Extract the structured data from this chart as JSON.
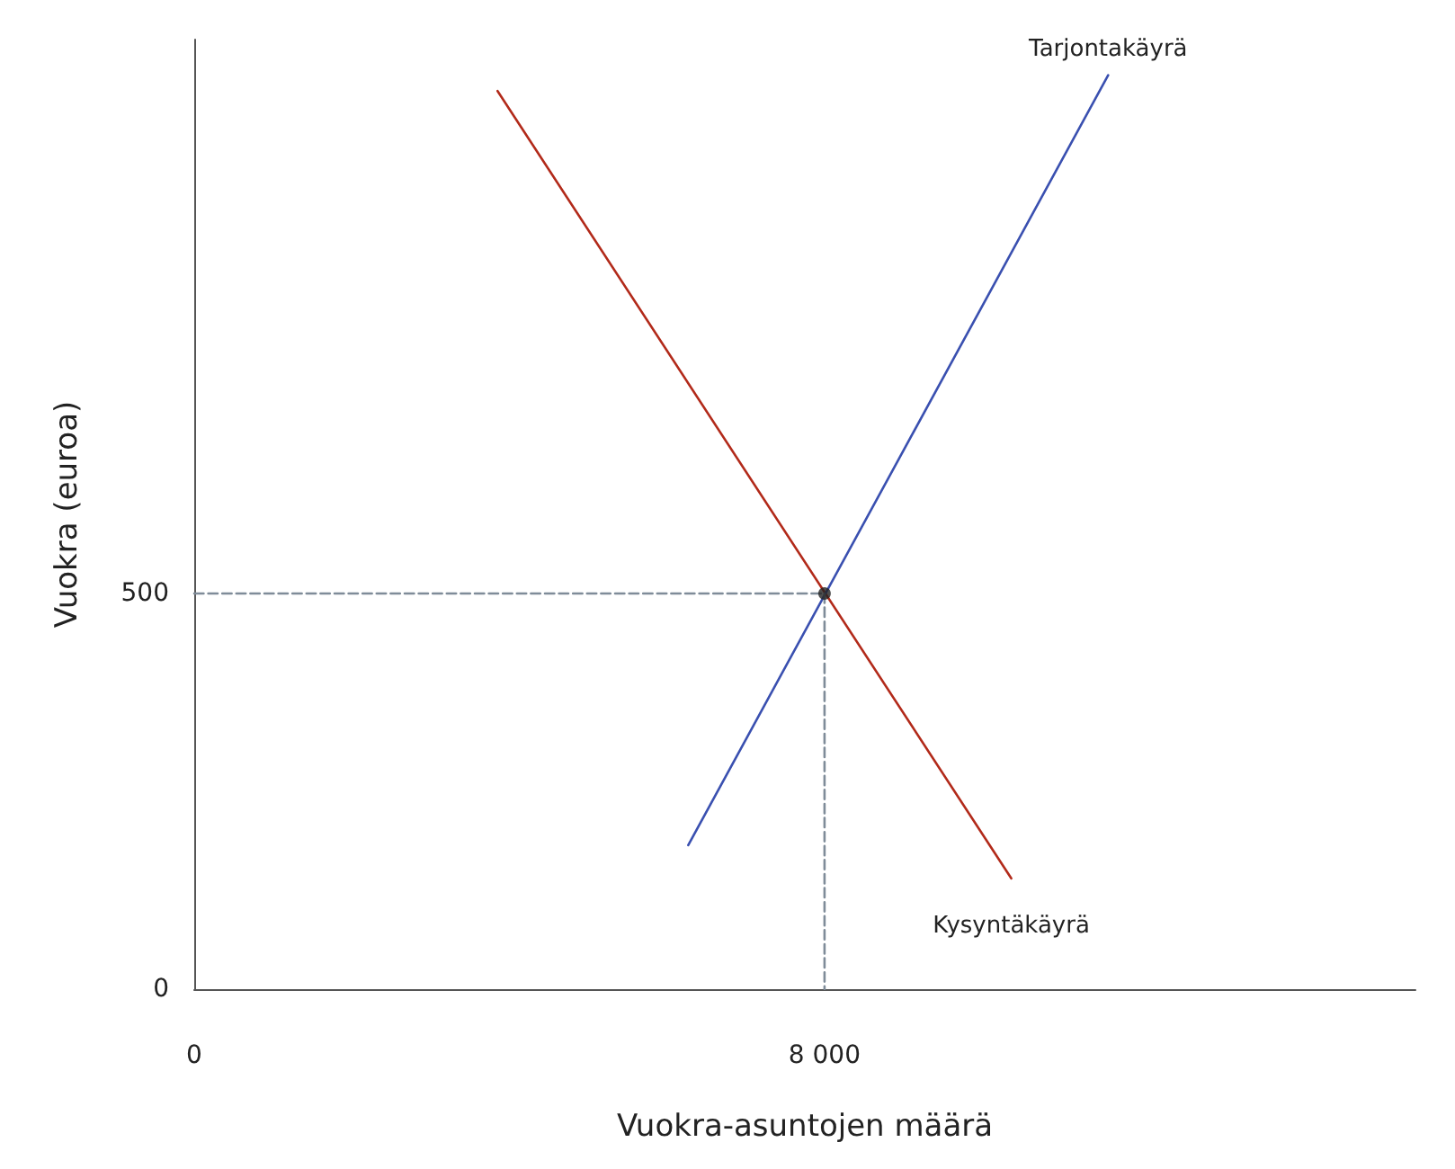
{
  "chart_data": {
    "type": "line",
    "xlabel": "Vuokra-asuntojen määrä",
    "ylabel": "Vuokra (euroa)",
    "xlim": [
      0,
      15500
    ],
    "ylim": [
      0,
      1200
    ],
    "xticks": [
      0,
      {
        "value": 8000,
        "label": "8 000"
      }
    ],
    "yticks": [
      0,
      500
    ],
    "grid": false,
    "legend": false,
    "marker": "none",
    "line_style": "solid",
    "series": [
      {
        "name": "Kysyntäkäyrä",
        "color": "#b22a1a",
        "x": [
          3850,
          10370
        ],
        "values": [
          1135,
          140
        ]
      },
      {
        "name": "Tarjontakäyrä",
        "color": "#3a50b0",
        "x": [
          6270,
          11600
        ],
        "values": [
          182,
          1155
        ]
      },
      {
        "color": "#7f8c99",
        "line_style": "dashed",
        "x": [
          0,
          8000
        ],
        "values": [
          500,
          500
        ]
      },
      {
        "color": "#7f8c99",
        "line_style": "dashed",
        "x": [
          8000,
          8000
        ],
        "values": [
          500,
          0
        ]
      },
      {
        "type": "scatter",
        "color": "#222222",
        "marker": "circle",
        "x": [
          8000
        ],
        "values": [
          500
        ]
      }
    ]
  }
}
